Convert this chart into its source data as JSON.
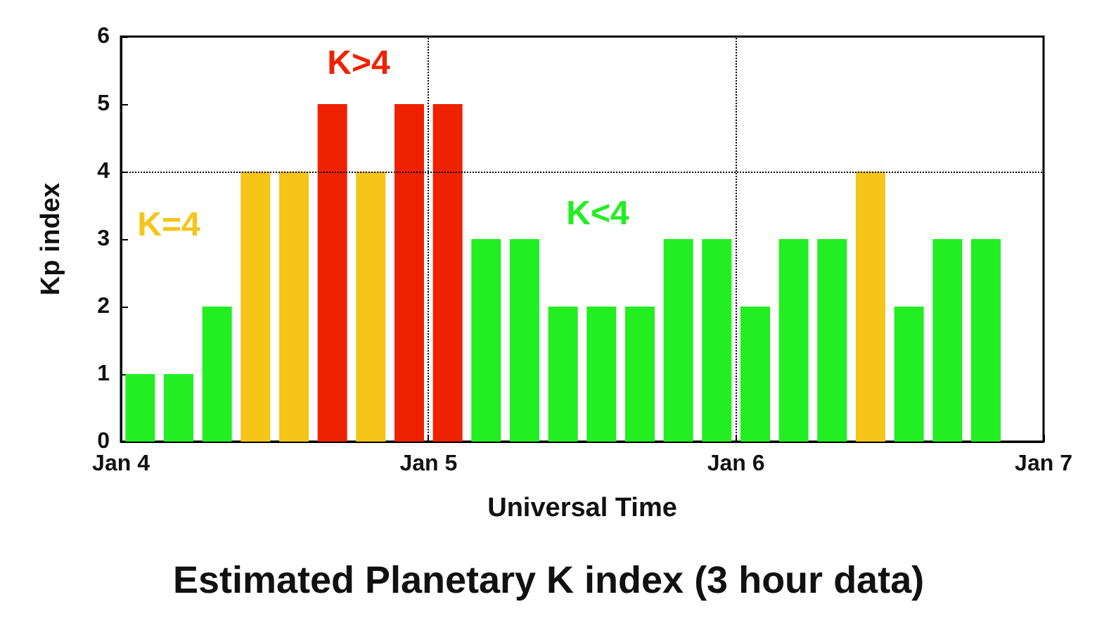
{
  "chart_data": {
    "type": "bar",
    "title": "Estimated Planetary K index (3 hour data)",
    "xlabel": "Universal Time",
    "ylabel": "Kp index",
    "x": [
      "--01-04T01:30",
      "--01-04T04:30",
      "--01-04T07:30",
      "--01-04T10:30",
      "--01-04T13:30",
      "--01-04T16:30",
      "--01-04T19:30",
      "--01-04T22:30",
      "--01-05T01:30",
      "--01-05T04:30",
      "--01-05T07:30",
      "--01-05T10:30",
      "--01-05T13:30",
      "--01-05T16:30",
      "--01-05T19:30",
      "--01-05T22:30",
      "--01-06T01:30",
      "--01-06T04:30",
      "--01-06T07:30",
      "--01-06T10:30",
      "--01-06T13:30",
      "--01-06T16:30",
      "--01-06T19:30"
    ],
    "values": [
      1,
      1,
      2,
      4,
      4,
      5,
      4,
      5,
      5,
      3,
      3,
      2,
      2,
      2,
      3,
      3,
      2,
      3,
      3,
      4,
      2,
      3,
      3
    ],
    "colors": [
      "#22ee22",
      "#22ee22",
      "#22ee22",
      "#f5c518",
      "#f5c518",
      "#ee2200",
      "#f5c518",
      "#ee2200",
      "#ee2200",
      "#22ee22",
      "#22ee22",
      "#22ee22",
      "#22ee22",
      "#22ee22",
      "#22ee22",
      "#22ee22",
      "#22ee22",
      "#22ee22",
      "#22ee22",
      "#f5c518",
      "#22ee22",
      "#22ee22",
      "#22ee22"
    ],
    "xlim": [
      "--01-04",
      "--01-07"
    ],
    "xticks": [
      {
        "value": "--01-04",
        "label": "Jan 4"
      },
      {
        "value": "--01-05",
        "label": "Jan 5"
      },
      {
        "value": "--01-06",
        "label": "Jan 6"
      },
      {
        "value": "--01-07",
        "label": "Jan 7"
      }
    ],
    "ylim": [
      0,
      6
    ],
    "yticks": [
      0,
      1,
      2,
      3,
      4,
      5,
      6
    ],
    "ref_lines": [
      {
        "axis": "y",
        "value": 4,
        "line_style": "dotted",
        "color": "#000000"
      },
      {
        "axis": "x",
        "value": "--01-05",
        "line_style": "dotted",
        "color": "#000000"
      },
      {
        "axis": "x",
        "value": "--01-06",
        "line_style": "dotted",
        "color": "#000000"
      }
    ],
    "annotations": [
      "K=4",
      "K>4",
      "K<4"
    ],
    "grid": false
  }
}
